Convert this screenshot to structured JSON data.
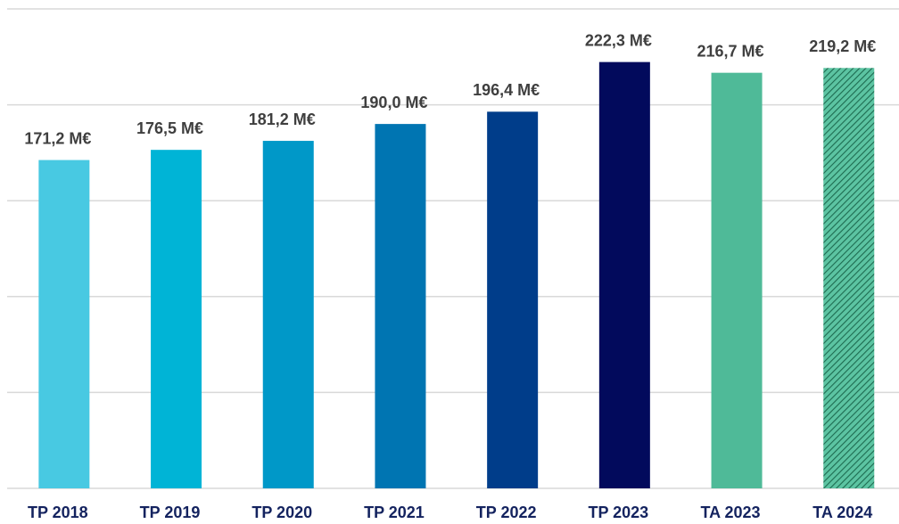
{
  "chart_data": {
    "type": "bar",
    "categories": [
      "TP 2018",
      "TP 2019",
      "TP 2020",
      "TP 2021",
      "TP 2022",
      "TP 2023",
      "TA 2023",
      "TA 2024"
    ],
    "values": [
      171.2,
      176.5,
      181.2,
      190.0,
      196.4,
      222.3,
      216.7,
      219.2
    ],
    "value_labels": [
      "171,2 M€",
      "176,5 M€",
      "181,2 M€",
      "190,0 M€",
      "196,4 M€",
      "222,3 M€",
      "216,7 M€",
      "219,2 M€"
    ],
    "colors": [
      "#48c9e2",
      "#00b4d6",
      "#0098c8",
      "#0075b2",
      "#003d8a",
      "#020a5c",
      "#4fba98",
      "#4fba98"
    ],
    "hatched": [
      false,
      false,
      false,
      false,
      false,
      false,
      false,
      true
    ],
    "ylim": [
      0,
      250
    ],
    "yticks": [
      0,
      50,
      100,
      150,
      200,
      250
    ],
    "grid": true
  }
}
